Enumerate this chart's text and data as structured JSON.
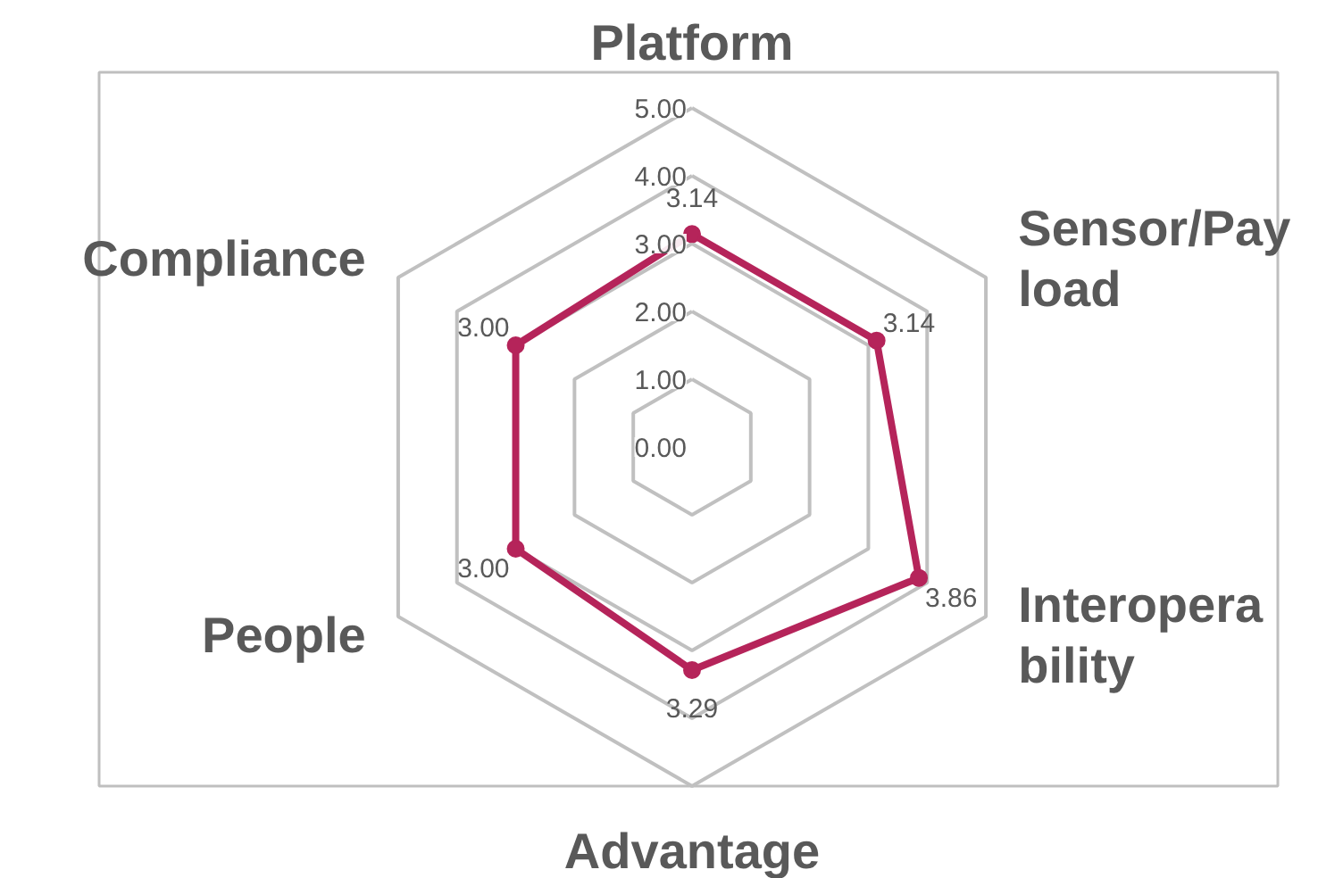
{
  "chart_data": {
    "type": "radar",
    "categories": [
      "Platform",
      "Sensor/Payload",
      "Interoperability",
      "Advantage",
      "People",
      "Compliance"
    ],
    "series": [
      {
        "color": "#b5245a",
        "values": [
          3.14,
          3.14,
          3.86,
          3.29,
          3.0,
          3.0
        ],
        "value_labels": [
          "3.14",
          "3.14",
          "3.86",
          "3.29",
          "3.00",
          "3.00"
        ]
      }
    ],
    "ylim": [
      0,
      5
    ],
    "yticks": [
      {
        "value": 0,
        "label": "0.00"
      },
      {
        "value": 1,
        "label": "1.00"
      },
      {
        "value": 2,
        "label": "2.00"
      },
      {
        "value": 3,
        "label": "3.00"
      },
      {
        "value": 4,
        "label": "4.00"
      },
      {
        "value": 5,
        "label": "5.00"
      }
    ],
    "grid": true,
    "marker": "circle"
  }
}
